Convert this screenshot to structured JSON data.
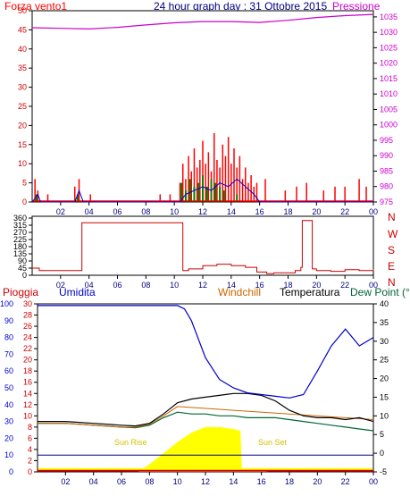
{
  "chart_data": [
    {
      "type": "line",
      "title": "24 hour graph day : 31 Ottobre 2015",
      "series_labels": {
        "wind": "Forza vento1",
        "pressure": "Pressione"
      },
      "x_ticks": [
        "02",
        "04",
        "06",
        "08",
        "10",
        "12",
        "14",
        "16",
        "18",
        "20",
        "22",
        "00"
      ],
      "y_left_ticks": [
        "0",
        "5",
        "10",
        "15",
        "20",
        "25",
        "30",
        "35",
        "40",
        "45",
        "50"
      ],
      "y_right_ticks": [
        "975",
        "980",
        "985",
        "990",
        "995",
        "1000",
        "1005",
        "1010",
        "1015",
        "1020",
        "1025",
        "1030",
        "1035"
      ],
      "ylim_left": [
        0,
        50
      ],
      "ylim_right": [
        975,
        1037
      ],
      "colors": {
        "wind": "#ff0000",
        "gust": "#0000cc",
        "green": "#008000",
        "pressure": "#cc00cc",
        "title": "#000080"
      },
      "pressure": {
        "x": [
          0,
          2,
          4,
          6,
          8,
          10,
          12,
          14,
          16,
          18,
          20,
          22,
          24
        ],
        "y": [
          1031.5,
          1031.3,
          1031.1,
          1031.6,
          1032.4,
          1033.1,
          1033.5,
          1033.5,
          1033.2,
          1033.9,
          1034.8,
          1035.4,
          1035.8
        ]
      },
      "wind_bars": {
        "x": [
          0.2,
          0.4,
          1.1,
          3.0,
          3.3,
          4.1,
          9.0,
          9.7,
          10.4,
          10.6,
          10.8,
          11.0,
          11.2,
          11.4,
          11.6,
          11.8,
          12.0,
          12.2,
          12.4,
          12.6,
          12.8,
          13.0,
          13.2,
          13.4,
          13.6,
          13.8,
          14.0,
          14.2,
          14.4,
          14.6,
          14.8,
          15.0,
          15.2,
          15.4,
          15.6,
          15.8,
          16.4,
          17.8,
          18.6,
          19.3,
          20.5,
          21.3,
          22.0,
          23.0,
          23.5
        ],
        "y": [
          6,
          3,
          2,
          4,
          6,
          2,
          2,
          2,
          5,
          10,
          6,
          12,
          8,
          14,
          9,
          11,
          16,
          10,
          13,
          8,
          18,
          11,
          9,
          15,
          12,
          17,
          10,
          14,
          9,
          12,
          6,
          9,
          5,
          7,
          4,
          5,
          6,
          3,
          4,
          5,
          3,
          4,
          4,
          6,
          4
        ]
      },
      "gust_line": {
        "x": [
          0,
          0.4,
          0.6,
          3.0,
          3.3,
          3.6,
          10.4,
          10.8,
          11.4,
          12.0,
          12.6,
          13.2,
          13.8,
          14.4,
          15.0,
          15.6,
          16.0,
          24
        ],
        "y": [
          0,
          2,
          0,
          0,
          3,
          0,
          0,
          2,
          3,
          4,
          3,
          5,
          4,
          6,
          4,
          2,
          0,
          0
        ]
      },
      "green_bars": {
        "x": [
          0.3,
          3.2,
          10.5,
          10.8,
          11.1,
          11.4,
          11.7,
          12.0,
          12.3,
          12.6,
          12.9,
          13.2,
          13.5,
          14.4
        ],
        "y": [
          2,
          2,
          5,
          3,
          6,
          4,
          5,
          7,
          4,
          6,
          5,
          4,
          3,
          2
        ]
      }
    },
    {
      "type": "line",
      "title": "",
      "y_ticks": [
        "0",
        "45",
        "90",
        "135",
        "180",
        "225",
        "270",
        "315",
        "360"
      ],
      "direction_labels": [
        "N",
        "W",
        "S",
        "E",
        "N"
      ],
      "ylim": [
        0,
        360
      ],
      "x_ticks": [
        "02",
        "04",
        "06",
        "08",
        "10",
        "12",
        "14",
        "16",
        "18",
        "20",
        "22",
        "00"
      ],
      "colors": {
        "line": "#cc0000",
        "labels": "#cc0000"
      },
      "direction": {
        "x": [
          0,
          0.5,
          1,
          3.0,
          3.4,
          3.5,
          6,
          9,
          10.5,
          10.6,
          11,
          12,
          13,
          14,
          15,
          15.8,
          16.5,
          17,
          18.5,
          18.9,
          19.0,
          19.6,
          19.7,
          20,
          21,
          22,
          23,
          24
        ],
        "y": [
          45,
          30,
          30,
          30,
          30,
          330,
          330,
          330,
          330,
          30,
          40,
          60,
          70,
          60,
          50,
          20,
          10,
          15,
          30,
          50,
          345,
          345,
          40,
          30,
          25,
          35,
          30,
          40
        ]
      }
    },
    {
      "type": "line",
      "series_labels": {
        "rain": "Pioggia",
        "humidity": "Umidita",
        "windchill": "Windchill",
        "temperature": "Temperatura",
        "dewpoint": "Dew Point (°C"
      },
      "y_left1_ticks": [
        "0",
        "10",
        "20",
        "30",
        "40",
        "50",
        "60",
        "70",
        "80",
        "90",
        "100"
      ],
      "y_left2_ticks": [
        "0",
        "2",
        "4",
        "6",
        "8",
        "10",
        "12",
        "14",
        "16",
        "18",
        "20",
        "22",
        "24",
        "26",
        "28",
        "30"
      ],
      "y_right_ticks": [
        "-5",
        "0",
        "5",
        "10",
        "15",
        "20",
        "25",
        "30",
        "35",
        "40"
      ],
      "x_ticks": [
        "02",
        "04",
        "06",
        "08",
        "10",
        "12",
        "14",
        "16",
        "18",
        "20",
        "22",
        "00"
      ],
      "annotations": {
        "sunrise": "Sun Rise",
        "sunset": "Sun Set"
      },
      "ylim_temp": [
        -5,
        40
      ],
      "ylim_humidity": [
        0,
        100
      ],
      "colors": {
        "humidity": "#0000cc",
        "temperature": "#000000",
        "dewpoint": "#006633",
        "windchill": "#cc6600",
        "solar": "#ffff00",
        "rain": "#cc0000",
        "blueline": "#000080"
      },
      "humidity": {
        "x": [
          0,
          2,
          4,
          6,
          8,
          9,
          10,
          10.5,
          11,
          12,
          13,
          14,
          15,
          16,
          17,
          18,
          19,
          20,
          21,
          22,
          23,
          24
        ],
        "y": [
          99,
          99,
          99,
          99,
          99,
          99,
          99,
          97,
          90,
          68,
          55,
          50,
          47,
          46,
          45,
          44,
          46,
          60,
          75,
          85,
          75,
          80
        ]
      },
      "temperature": {
        "x": [
          0,
          2,
          4,
          6,
          7,
          8,
          9,
          10,
          11,
          12,
          13,
          14,
          15,
          16,
          17,
          18,
          19,
          20,
          21,
          22,
          23,
          24
        ],
        "y": [
          8.5,
          8.5,
          8.0,
          7.5,
          7.3,
          8.0,
          10.5,
          13.5,
          14.5,
          15.0,
          15.5,
          16.0,
          16.0,
          15.5,
          14.0,
          11.5,
          10.0,
          9.5,
          9.5,
          9.0,
          9.5,
          8.5
        ]
      },
      "dewpoint": {
        "x": [
          0,
          2,
          4,
          6,
          7,
          8,
          9,
          10,
          11,
          12,
          13,
          14,
          15,
          16,
          17,
          18,
          19,
          20,
          21,
          22,
          23,
          24
        ],
        "y": [
          8.0,
          8.0,
          7.5,
          7.0,
          6.8,
          7.5,
          9.5,
          11.0,
          10.5,
          10.5,
          10.0,
          10.0,
          9.5,
          9.5,
          9.5,
          9.0,
          8.5,
          8.0,
          7.5,
          7.0,
          6.5,
          6.0
        ]
      },
      "windchill": {
        "x": [
          0,
          2,
          4,
          6,
          7,
          8,
          9,
          10,
          24
        ],
        "y": [
          8.0,
          8.0,
          7.5,
          7.0,
          7.0,
          7.8,
          10.0,
          12.5,
          9.0
        ]
      },
      "solar": {
        "x": [
          7.2,
          8,
          9,
          10,
          11,
          12,
          13,
          14,
          14.5,
          14.6,
          16.5,
          24
        ],
        "y": [
          -5,
          -3,
          0,
          3,
          5.5,
          7,
          7,
          6.5,
          6,
          -4,
          -5,
          -5
        ]
      },
      "rain_level": 0.2,
      "blue_rain_line": 10
    }
  ]
}
